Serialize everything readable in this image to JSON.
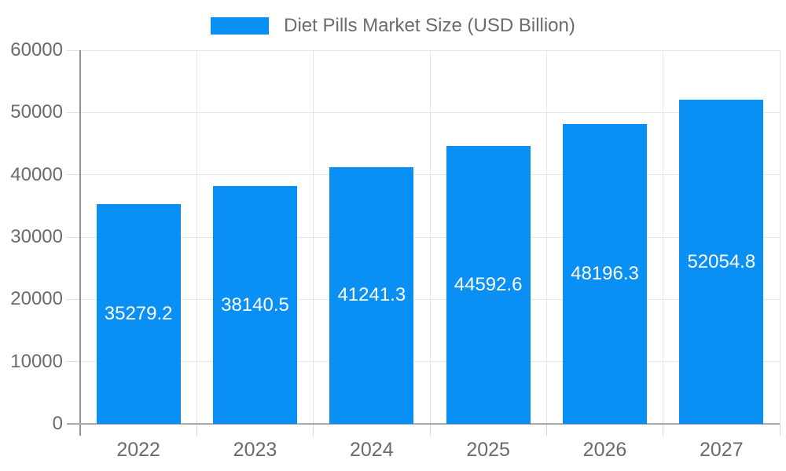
{
  "legend": {
    "label": "Diet Pills Market Size (USD Billion)"
  },
  "chart_data": {
    "type": "bar",
    "title": "Diet Pills Market Size (USD Billion)",
    "categories": [
      "2022",
      "2023",
      "2024",
      "2025",
      "2026",
      "2027"
    ],
    "series": [
      {
        "name": "Diet Pills Market Size (USD Billion)",
        "values": [
          35279.2,
          38140.5,
          41241.3,
          44592.6,
          48196.3,
          52054.8
        ]
      }
    ],
    "data_labels": [
      "35279.2",
      "38140.5",
      "41241.3",
      "44592.6",
      "48196.3",
      "52054.8"
    ],
    "xlabel": "",
    "ylabel": "",
    "ylim": [
      0,
      60000
    ],
    "y_ticks": [
      0,
      10000,
      20000,
      30000,
      40000,
      50000,
      60000
    ],
    "y_tick_labels": [
      "0",
      "10000",
      "20000",
      "30000",
      "40000",
      "50000",
      "60000"
    ],
    "grid": true,
    "legend_position": "top",
    "colors": {
      "bar": "#0a90f5",
      "data_label": "#ffffff",
      "axis_text": "#6b6b6b",
      "gridline": "#e6e6e6",
      "axis_line": "#9e9e9e",
      "background": "#ffffff"
    }
  }
}
